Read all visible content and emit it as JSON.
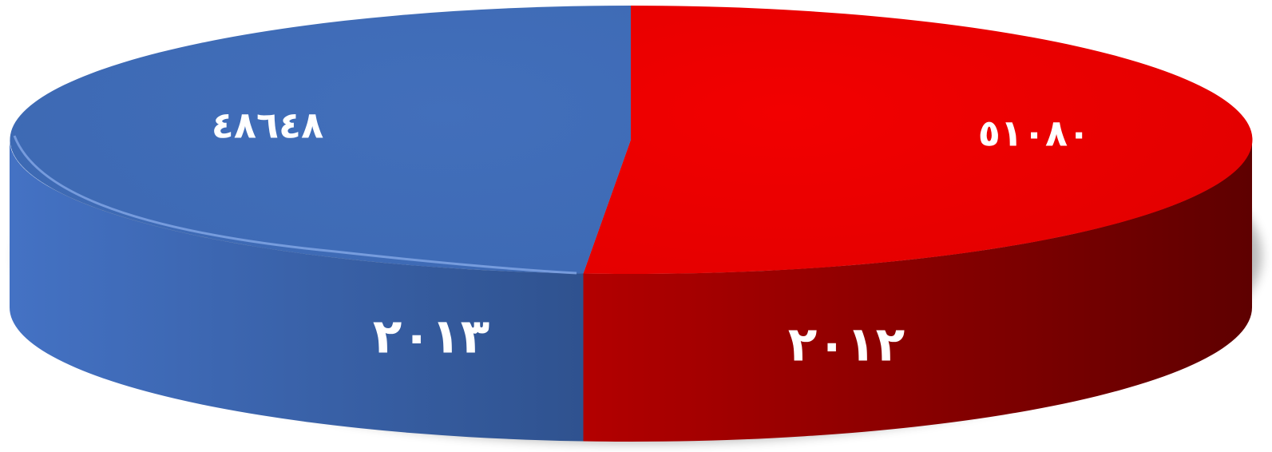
{
  "chart_data": {
    "type": "pie",
    "style": "3d",
    "categories": [
      "٢٠١٢",
      "٢٠١٣"
    ],
    "values": [
      51080,
      48648
    ],
    "value_labels": [
      "٥١٠٨٠",
      "٤٨٦٤٨"
    ],
    "colors": [
      "#e80000",
      "#3e6bb5"
    ],
    "side_colors": [
      "#8a0000",
      "#345c9e"
    ],
    "title": "",
    "legend": "none"
  }
}
